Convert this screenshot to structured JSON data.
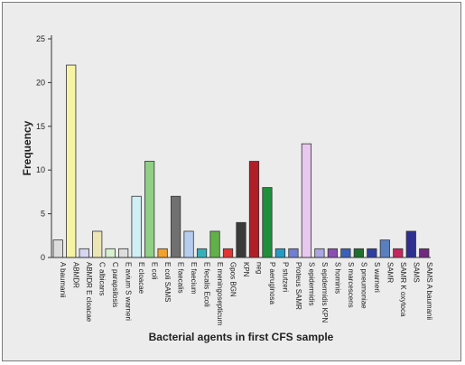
{
  "chart_data": {
    "type": "bar",
    "title": "",
    "xlabel": "Bacterial agents in first CFS sample",
    "ylabel": "Frequency",
    "ylim": [
      0,
      25
    ],
    "yticks": [
      0,
      5,
      10,
      15,
      20,
      25
    ],
    "grid": false,
    "categories": [
      "A baumanii",
      "ABMDR",
      "ABMDR E cloacae",
      "C albicans",
      "C parapsilosis",
      "E avium S warneri",
      "E cloacae",
      "E coli",
      "E coli SAMS",
      "E faecalis",
      "E faecium",
      "E fecalis Ecoli",
      "E meningosepticum",
      "Gpos BGN",
      "KPN",
      "neg",
      "P aeruginosa",
      "P stutzeri",
      "Proteus SAMR",
      "S epidermidis",
      "S epidermidis KPN",
      "S hominis",
      "S marcescens",
      "S pneumoniae",
      "S warneri",
      "SAMR",
      "SAMR K oxytoca",
      "SAMS",
      "SAMS A baumanii"
    ],
    "values": [
      2,
      22,
      1,
      3,
      1,
      1,
      7,
      11,
      1,
      7,
      3,
      1,
      3,
      1,
      4,
      11,
      8,
      1,
      1,
      13,
      1,
      1,
      1,
      1,
      1,
      2,
      1,
      3,
      1
    ],
    "colors": [
      "#dcdcdc",
      "#f7f3a4",
      "#d6d6f0",
      "#ece6b4",
      "#d8f0d0",
      "#dedede",
      "#cfeff4",
      "#8fcf86",
      "#f2a12e",
      "#707070",
      "#b6cdf0",
      "#35b0b8",
      "#62b04a",
      "#e33434",
      "#3a3a3a",
      "#b01f28",
      "#1f8f3c",
      "#259bc4",
      "#6f7fd4",
      "#e8c8ee",
      "#a9a6e0",
      "#8b4fb4",
      "#3a62b8",
      "#1f6f2f",
      "#2f3fa0",
      "#5a7fbf",
      "#c2285f",
      "#2f2f8f",
      "#6f2a7f"
    ]
  }
}
